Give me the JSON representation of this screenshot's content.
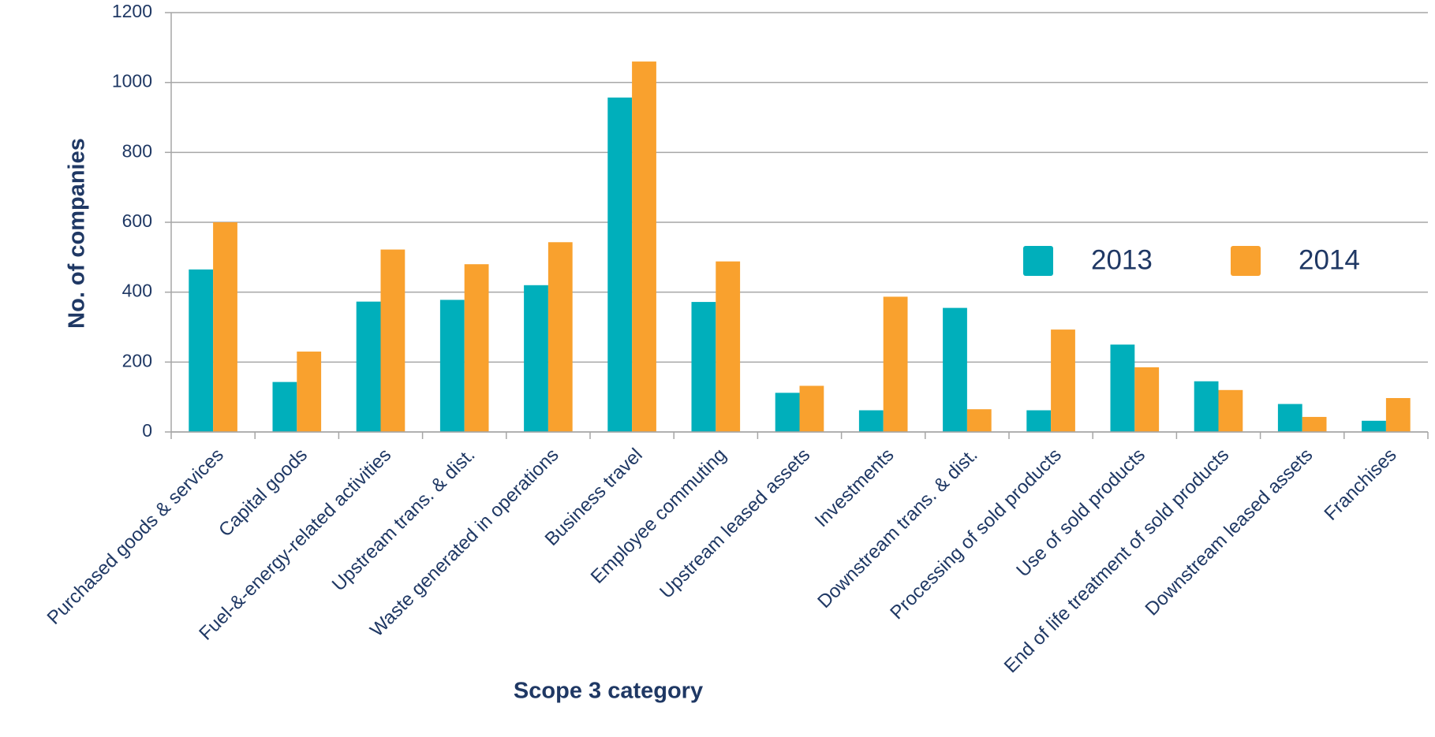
{
  "chart_data": {
    "type": "bar",
    "x_label": "Scope 3 category",
    "y_label": "No. of companies",
    "categories": [
      "Purchased goods & services",
      "Capital goods",
      "Fuel-&-energy-related activities",
      "Upstream trans. & dist.",
      "Waste generated in operations",
      "Business travel",
      "Employee commuting",
      "Upstream leased assets",
      "Investments",
      "Downstream trans. & dist.",
      "Processing of sold products",
      "Use of sold products",
      "End of life treatment of sold products",
      "Downstream leased assets",
      "Franchises"
    ],
    "series": [
      {
        "name": "2013",
        "color": "#00afbb",
        "values": [
          465,
          143,
          373,
          378,
          420,
          957,
          372,
          112,
          62,
          355,
          62,
          250,
          145,
          80,
          32
        ]
      },
      {
        "name": "2014",
        "color": "#f9a12e",
        "values": [
          600,
          230,
          522,
          480,
          543,
          1060,
          488,
          132,
          387,
          65,
          293,
          185,
          120,
          43,
          97
        ]
      }
    ],
    "ylim": [
      0,
      1200
    ],
    "yticks": [
      0,
      200,
      400,
      600,
      800,
      1000,
      1200
    ],
    "grid": true
  }
}
